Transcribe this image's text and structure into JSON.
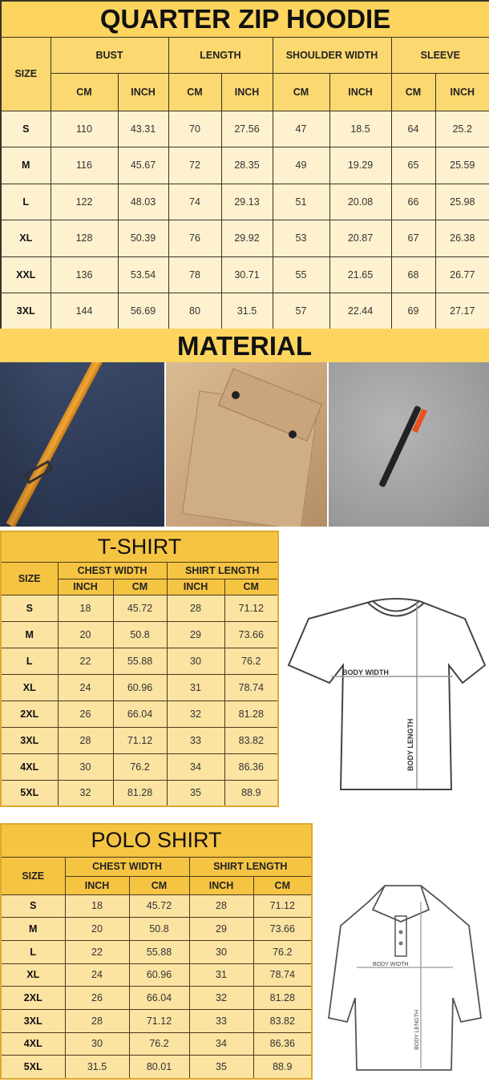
{
  "hoodie": {
    "title": "QUARTER ZIP HOODIE",
    "headers": [
      "SIZE",
      "BUST",
      "LENGTH",
      "SHOULDER WIDTH",
      "SLEEVE"
    ],
    "subheaders": [
      "CM",
      "INCH",
      "CM",
      "INCH",
      "CM",
      "INCH",
      "CM",
      "INCH"
    ],
    "rows": [
      [
        "S",
        "110",
        "43.31",
        "70",
        "27.56",
        "47",
        "18.5",
        "64",
        "25.2"
      ],
      [
        "M",
        "116",
        "45.67",
        "72",
        "28.35",
        "49",
        "19.29",
        "65",
        "25.59"
      ],
      [
        "L",
        "122",
        "48.03",
        "74",
        "29.13",
        "51",
        "20.08",
        "66",
        "25.98"
      ],
      [
        "XL",
        "128",
        "50.39",
        "76",
        "29.92",
        "53",
        "20.87",
        "67",
        "26.38"
      ],
      [
        "XXL",
        "136",
        "53.54",
        "78",
        "30.71",
        "55",
        "21.65",
        "68",
        "26.77"
      ],
      [
        "3XL",
        "144",
        "56.69",
        "80",
        "31.5",
        "57",
        "22.44",
        "69",
        "27.17"
      ]
    ]
  },
  "material": {
    "title": "MATERIAL",
    "photos": [
      "navy-fabric-pocket-strap",
      "tan-fabric-flap-pocket",
      "gray-fabric-zipper-pocket"
    ]
  },
  "tshirt": {
    "title": "T-SHIRT",
    "headers": [
      "SIZE",
      "CHEST WIDTH",
      "SHIRT LENGTH"
    ],
    "subheaders": [
      "INCH",
      "CM",
      "INCH",
      "CM"
    ],
    "rows": [
      [
        "S",
        "18",
        "45.72",
        "28",
        "71.12"
      ],
      [
        "M",
        "20",
        "50.8",
        "29",
        "73.66"
      ],
      [
        "L",
        "22",
        "55.88",
        "30",
        "76.2"
      ],
      [
        "XL",
        "24",
        "60.96",
        "31",
        "78.74"
      ],
      [
        "2XL",
        "26",
        "66.04",
        "32",
        "81.28"
      ],
      [
        "3XL",
        "28",
        "71.12",
        "33",
        "83.82"
      ],
      [
        "4XL",
        "30",
        "76.2",
        "34",
        "86.36"
      ],
      [
        "5XL",
        "32",
        "81.28",
        "35",
        "88.9"
      ]
    ],
    "diagram": {
      "width_label": "BODY WIDTH",
      "length_label": "BODY LENGTH"
    }
  },
  "polo": {
    "title": "POLO SHIRT",
    "headers": [
      "SIZE",
      "CHEST WIDTH",
      "SHIRT LENGTH"
    ],
    "subheaders": [
      "INCH",
      "CM",
      "INCH",
      "CM"
    ],
    "rows": [
      [
        "S",
        "18",
        "45.72",
        "28",
        "71.12"
      ],
      [
        "M",
        "20",
        "50.8",
        "29",
        "73.66"
      ],
      [
        "L",
        "22",
        "55.88",
        "30",
        "76.2"
      ],
      [
        "XL",
        "24",
        "60.96",
        "31",
        "78.74"
      ],
      [
        "2XL",
        "26",
        "66.04",
        "32",
        "81.28"
      ],
      [
        "3XL",
        "28",
        "71.12",
        "33",
        "83.82"
      ],
      [
        "4XL",
        "30",
        "76.2",
        "34",
        "86.36"
      ],
      [
        "5XL",
        "31.5",
        "80.01",
        "35",
        "88.9"
      ]
    ],
    "diagram": {
      "width_label": "BODY WIDTH",
      "length_label": "BODY LENGTH"
    }
  },
  "colors": {
    "header_yellow": "#fcd45e",
    "cell_cream": "#fdf1cf",
    "shirt_header": "#f6c443",
    "shirt_cell": "#fbe3a2"
  }
}
